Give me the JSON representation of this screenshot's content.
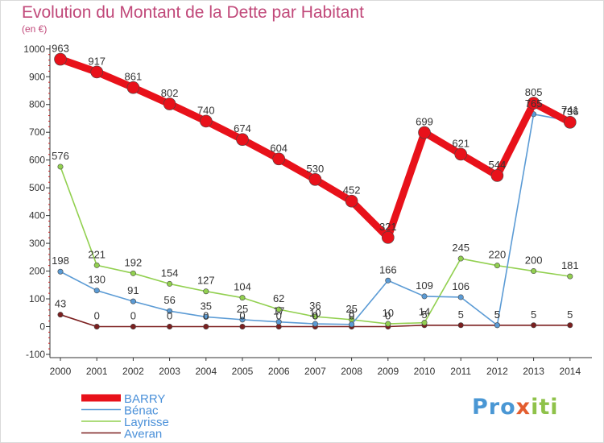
{
  "title": "Evolution du Montant de la Dette par Habitant",
  "unit": "(en €)",
  "logo": "Proxiti",
  "chart_data": {
    "type": "line",
    "title": "Evolution du Montant de la Dette par Habitant",
    "ylabel": "(en €)",
    "x": [
      "2000",
      "2001",
      "2002",
      "2003",
      "2004",
      "2005",
      "2006",
      "2007",
      "2008",
      "2009",
      "2010",
      "2011",
      "2012",
      "2013",
      "2014"
    ],
    "ylim": [
      -100,
      1000
    ],
    "yticks": [
      -100,
      0,
      100,
      200,
      300,
      400,
      500,
      600,
      700,
      800,
      900,
      1000
    ],
    "grid": false,
    "legend": "bottom-left",
    "series": [
      {
        "name": "BARRY",
        "color": "#e8111a",
        "values": [
          963,
          917,
          861,
          802,
          740,
          674,
          604,
          530,
          452,
          321,
          699,
          621,
          544,
          805,
          736
        ]
      },
      {
        "name": "Bénac",
        "color": "#5b9bd5",
        "values": [
          198,
          130,
          91,
          56,
          35,
          25,
          17,
          10,
          8,
          166,
          109,
          106,
          5,
          765,
          741
        ]
      },
      {
        "name": "Layrisse",
        "color": "#92d050",
        "values": [
          576,
          221,
          192,
          154,
          127,
          104,
          62,
          36,
          25,
          10,
          14,
          245,
          220,
          200,
          181
        ]
      },
      {
        "name": "Averan",
        "color": "#7b1f1f",
        "values": [
          43,
          0,
          0,
          0,
          0,
          0,
          0,
          0,
          0,
          0,
          5,
          5,
          5,
          5,
          5
        ]
      }
    ],
    "data_labels": [
      [
        "963",
        "917",
        "861",
        "802",
        "740",
        "674",
        "604",
        "530",
        "452",
        "321",
        "699",
        "621",
        "544",
        "805",
        "736"
      ],
      [
        "198",
        "130",
        "91",
        "56",
        "35",
        "25",
        "17",
        "10",
        "8",
        "166",
        "109",
        "106",
        "5",
        "765",
        "741"
      ],
      [
        "576",
        "221",
        "192",
        "154",
        "127",
        "104",
        "62",
        "36",
        "25",
        "10",
        "14",
        "245",
        "220",
        "200",
        "181"
      ],
      [
        "43",
        "0",
        "0",
        "0",
        "0",
        "0",
        "0",
        "0",
        "0",
        "0",
        "5",
        "5",
        "5",
        "5",
        "5"
      ]
    ]
  }
}
